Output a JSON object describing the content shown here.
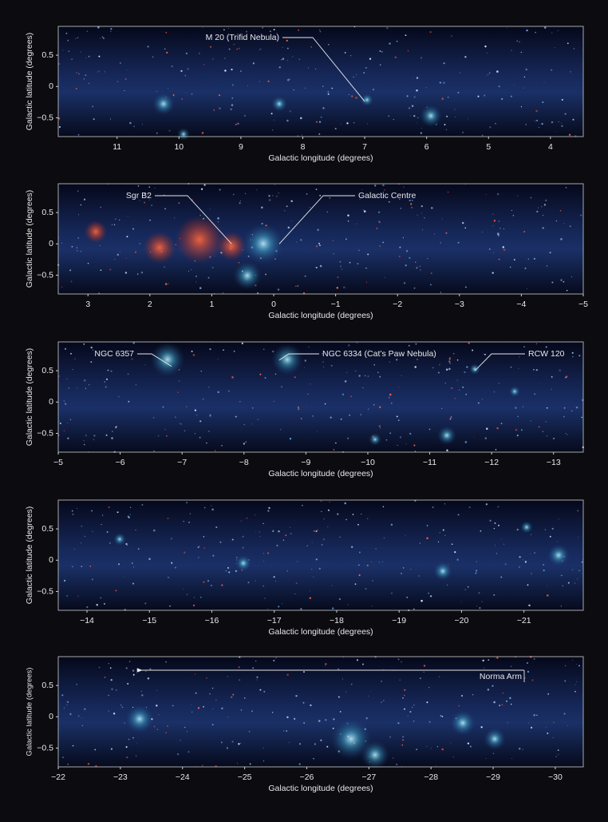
{
  "chart_data": [
    {
      "type": "image",
      "xlabel": "Galactic longitude (degrees)",
      "ylabel": "Galactic latitude (degrees)",
      "xlim": [
        11.95,
        3.47
      ],
      "ylim": [
        -0.8,
        0.96
      ],
      "xticks": [
        11,
        10,
        9,
        8,
        7,
        6,
        5,
        4
      ],
      "yticks": [
        0.5,
        0,
        {
          "value": -0.5,
          "label": "−0.5"
        }
      ],
      "annotations": [
        {
          "text": "M 20 (Trifid Nebula)",
          "x": 7.0,
          "y": -0.24
        }
      ]
    },
    {
      "type": "image",
      "xlabel": "Galactic longitude (degrees)",
      "ylabel": "Galactic latitude (degrees)",
      "xlim": [
        3.48,
        -5
      ],
      "ylim": [
        -0.8,
        0.96
      ],
      "xticks": [
        3,
        2,
        1,
        0,
        {
          "value": -1,
          "label": "−1"
        },
        {
          "value": -2,
          "label": "−2"
        },
        {
          "value": -3,
          "label": "−3"
        },
        {
          "value": -4,
          "label": "−4"
        },
        {
          "value": -5,
          "label": "−5"
        }
      ],
      "yticks": [
        0.5,
        0,
        {
          "value": -0.5,
          "label": "−0.5"
        }
      ],
      "annotations": [
        {
          "text": "Sgr B2",
          "x": 0.68,
          "y": 0.0
        },
        {
          "text": "Galactic Centre",
          "x": -0.09,
          "y": 0.0
        }
      ]
    },
    {
      "type": "image",
      "xlabel": "Galactic longitude (degrees)",
      "ylabel": "Galactic latitude (degrees)",
      "xlim": [
        -5,
        -13.48
      ],
      "ylim": [
        -0.8,
        0.96
      ],
      "xticks": [
        {
          "value": -5,
          "label": "−5"
        },
        {
          "value": -6,
          "label": "−6"
        },
        {
          "value": -7,
          "label": "−7"
        },
        {
          "value": -8,
          "label": "−8"
        },
        {
          "value": -9,
          "label": "−9"
        },
        {
          "value": -10,
          "label": "−10"
        },
        {
          "value": -11,
          "label": "−11"
        },
        {
          "value": -12,
          "label": "−12"
        },
        {
          "value": -13,
          "label": "−13"
        }
      ],
      "yticks": [
        0.5,
        0,
        {
          "value": -0.5,
          "label": "−0.5"
        }
      ],
      "annotations": [
        {
          "text": "NGC 6357",
          "x": -6.83,
          "y": 0.57
        },
        {
          "text": "NGC 6334 (Cat’s Paw Nebula)",
          "x": -8.57,
          "y": 0.67
        },
        {
          "text": "RCW 120",
          "x": -11.73,
          "y": 0.5
        }
      ]
    },
    {
      "type": "image",
      "xlabel": "Galactic longitude (degrees)",
      "ylabel": "Galactic latitude (degrees)",
      "xlim": [
        -13.54,
        -21.95
      ],
      "ylim": [
        -0.8,
        0.96
      ],
      "xticks": [
        {
          "value": -14,
          "label": "−14"
        },
        {
          "value": -15,
          "label": "−15"
        },
        {
          "value": -16,
          "label": "−16"
        },
        {
          "value": -17,
          "label": "−17"
        },
        {
          "value": -18,
          "label": "−18"
        },
        {
          "value": -19,
          "label": "−19"
        },
        {
          "value": -20,
          "label": "−20"
        },
        {
          "value": -21,
          "label": "−21"
        }
      ],
      "yticks": [
        0.5,
        0,
        {
          "value": -0.5,
          "label": "−0.5"
        }
      ],
      "annotations": []
    },
    {
      "type": "image",
      "xlabel": "Galactic longitude (degrees)",
      "ylabel": "Galactic latitude (degrees)",
      "xlim": [
        -22,
        -30.45
      ],
      "ylim": [
        -0.8,
        0.96
      ],
      "xticks": [
        {
          "value": -22,
          "label": "−22"
        },
        {
          "value": -23,
          "label": "−23"
        },
        {
          "value": -24,
          "label": "−24"
        },
        {
          "value": -25,
          "label": "−25"
        },
        {
          "value": -26,
          "label": "−26"
        },
        {
          "value": -27,
          "label": "−27"
        },
        {
          "value": -28,
          "label": "−28"
        },
        {
          "value": -29,
          "label": "−29"
        },
        {
          "value": -30,
          "label": "−30"
        }
      ],
      "yticks": [
        0.5,
        0,
        {
          "value": -0.5,
          "label": "−0.5"
        }
      ],
      "annotations": [
        {
          "text": "Norma Arm"
        }
      ]
    }
  ]
}
